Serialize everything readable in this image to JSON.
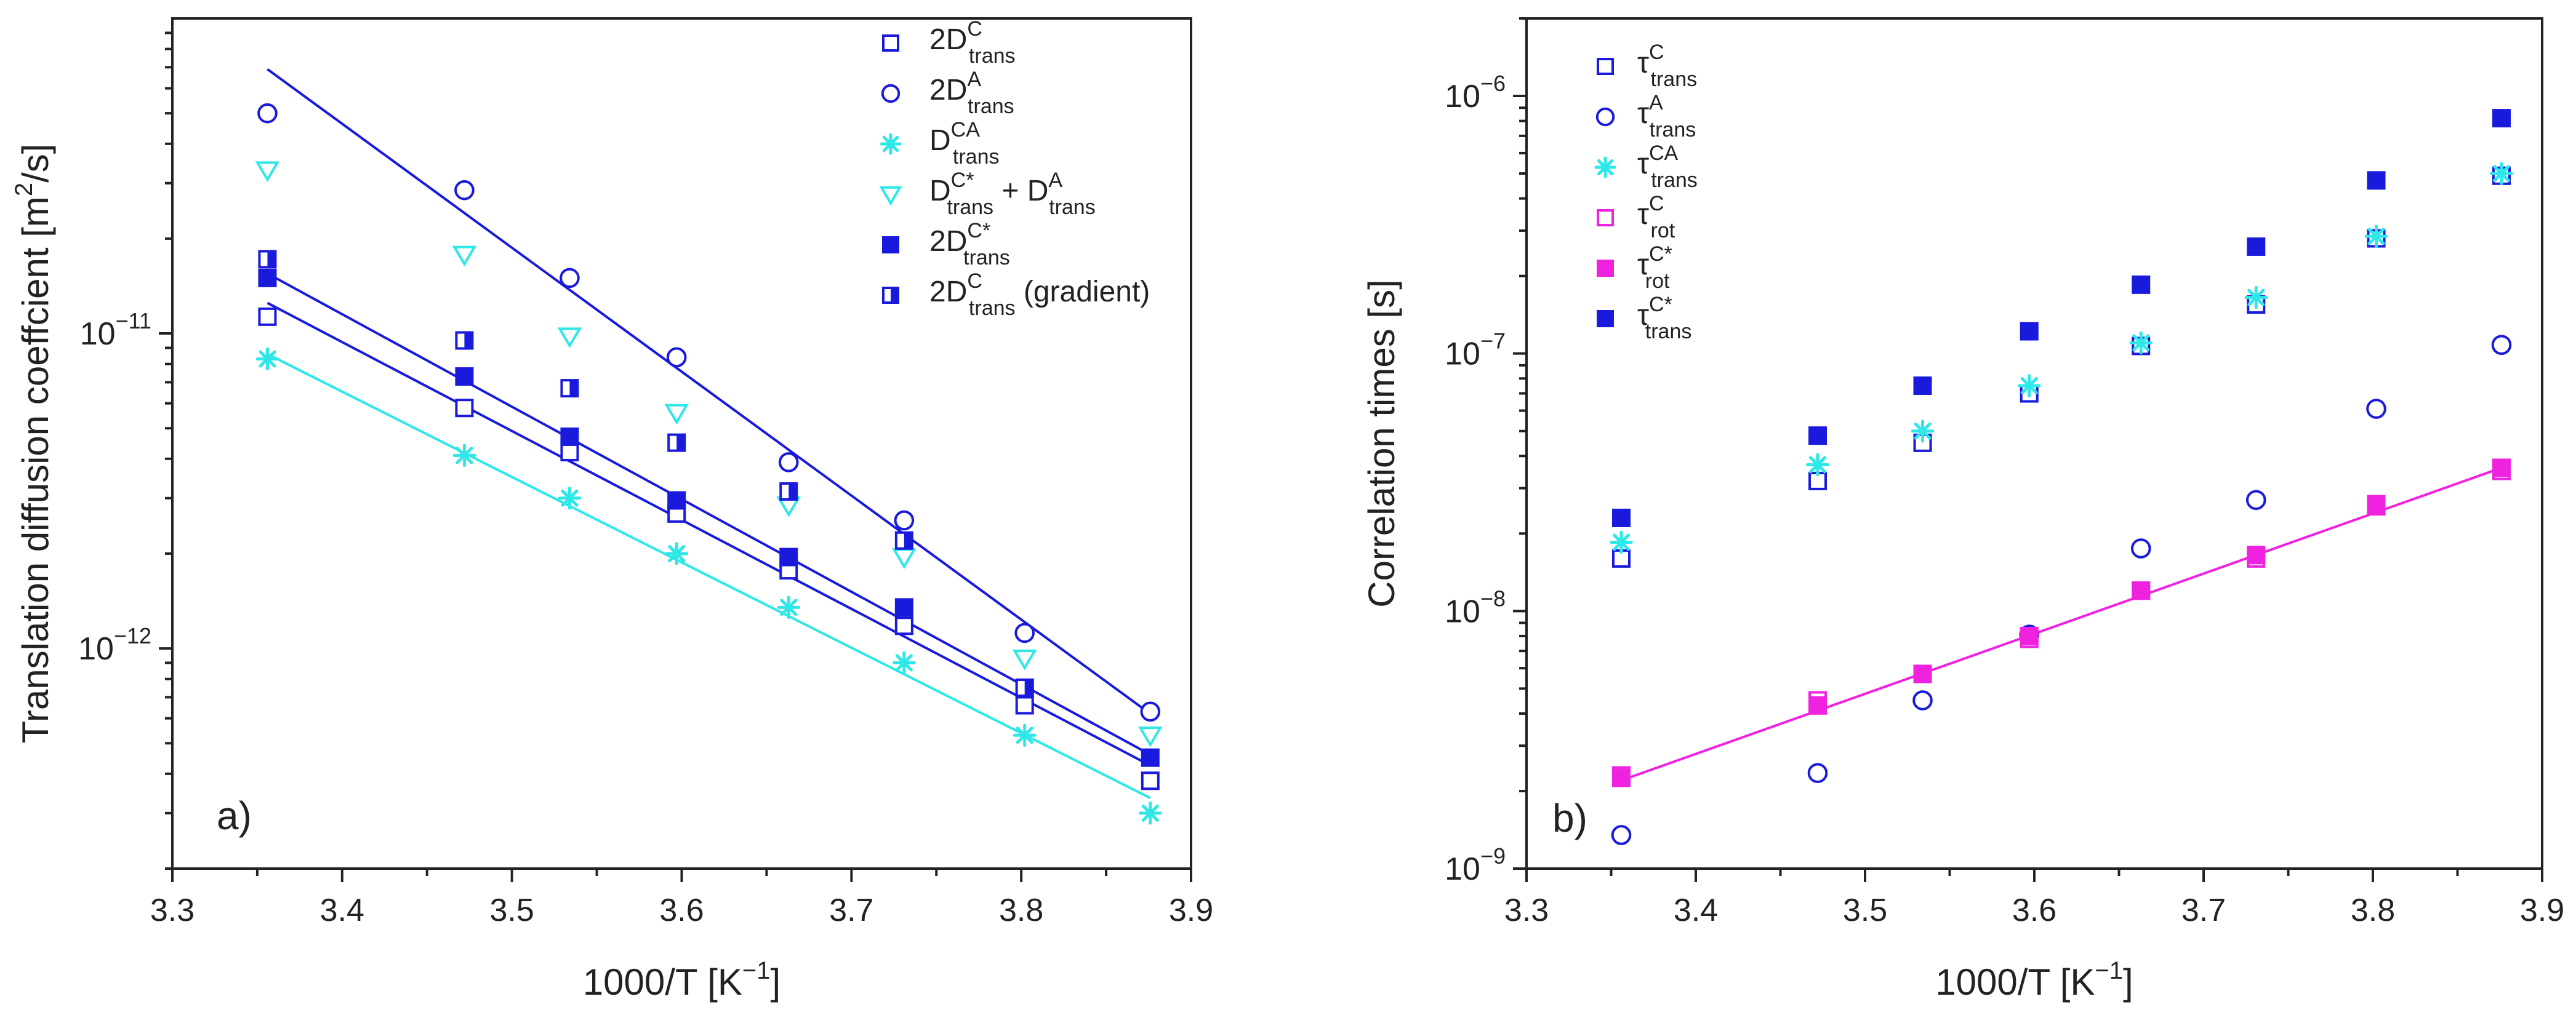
{
  "colors": {
    "blue": "#1a1adc",
    "cyan": "#2ee8e8",
    "magenta": "#ef22e0",
    "axis": "#222222"
  },
  "chart_data": [
    {
      "type": "scatter",
      "panel_label": "a)",
      "xlabel": "1000/T [K−1]",
      "ylabel": "Translation diffusion coeffcient [m2/s]",
      "xscale": "linear",
      "yscale": "log",
      "xlim": [
        3.3,
        3.9
      ],
      "ylim": [
        2e-13,
        1e-10
      ],
      "x_ticks": [
        3.3,
        3.4,
        3.5,
        3.6,
        3.7,
        3.8,
        3.9
      ],
      "x_tick_labels": [
        "3.3",
        "3.4",
        "3.5",
        "3.6",
        "3.7",
        "3.8",
        "3.9"
      ],
      "y_ticks": [
        1e-12,
        1e-11
      ],
      "y_tick_labels": [
        {
          "base": "10",
          "exp": "-12"
        },
        {
          "base": "10",
          "exp": "-11"
        }
      ],
      "legend_position": "top-right",
      "series": [
        {
          "name": "2D_trans^C",
          "label_main": "2D",
          "label_sup": "C",
          "label_sub": "trans",
          "label_suffix": "",
          "marker": "square-open",
          "color": "#1a1adc",
          "x": [
            3.356,
            3.472,
            3.534,
            3.597,
            3.663,
            3.731,
            3.802,
            3.876
          ],
          "y": [
            1.13e-11,
            5.8e-12,
            4.2e-12,
            2.68e-12,
            1.77e-12,
            1.18e-12,
            6.6e-13,
            3.8e-13
          ]
        },
        {
          "name": "2D_trans^A",
          "label_main": "2D",
          "label_sup": "A",
          "label_sub": "trans",
          "label_suffix": "",
          "marker": "circle-open",
          "color": "#1a1adc",
          "x": [
            3.356,
            3.472,
            3.534,
            3.597,
            3.663,
            3.731,
            3.802,
            3.876
          ],
          "y": [
            5e-11,
            2.85e-11,
            1.5e-11,
            8.4e-12,
            3.9e-12,
            2.55e-12,
            1.12e-12,
            6.3e-13
          ]
        },
        {
          "name": "D_trans^CA",
          "label_main": "D",
          "label_sup": "CA",
          "label_sub": "trans",
          "label_suffix": "",
          "marker": "asterisk",
          "color": "#2ee8e8",
          "x": [
            3.356,
            3.472,
            3.534,
            3.597,
            3.663,
            3.731,
            3.802,
            3.876
          ],
          "y": [
            8.3e-12,
            4.1e-12,
            3e-12,
            2e-12,
            1.35e-12,
            9e-13,
            5.3e-13,
            3e-13
          ]
        },
        {
          "name": "D_trans^C* + D_trans^A",
          "label_main": "D",
          "label_sup": "C*",
          "label_sub": "trans",
          "label_suffix": "+ D",
          "label_sup2": "A",
          "label_sub2": "trans",
          "marker": "triangle-down-open",
          "color": "#2ee8e8",
          "x": [
            3.356,
            3.472,
            3.534,
            3.597,
            3.663,
            3.731,
            3.802,
            3.876
          ],
          "y": [
            3.3e-11,
            1.78e-11,
            9.8e-12,
            5.6e-12,
            2.85e-12,
            1.95e-12,
            9.3e-13,
            5.3e-13
          ]
        },
        {
          "name": "2D_trans^C*",
          "label_main": "2D",
          "label_sup": "C*",
          "label_sub": "trans",
          "label_suffix": "",
          "marker": "square-filled",
          "color": "#1a1adc",
          "x": [
            3.356,
            3.472,
            3.534,
            3.597,
            3.663,
            3.731,
            3.802,
            3.876
          ],
          "y": [
            1.5e-11,
            7.3e-12,
            4.7e-12,
            2.95e-12,
            1.95e-12,
            1.35e-12,
            7.5e-13,
            4.5e-13
          ]
        },
        {
          "name": "2D_trans^C (gradient)",
          "label_main": "2D",
          "label_sup": "C",
          "label_sub": "trans",
          "label_suffix": "(gradient)",
          "marker": "square-half",
          "color": "#1a1adc",
          "x": [
            3.356,
            3.472,
            3.534,
            3.597,
            3.663,
            3.731,
            3.802
          ],
          "y": [
            1.72e-11,
            9.5e-12,
            6.7e-12,
            4.5e-12,
            3.15e-12,
            2.2e-12,
            7.5e-13
          ]
        }
      ],
      "fit_lines": [
        {
          "color": "#1a1adc",
          "x": [
            3.356,
            3.876
          ],
          "y": [
            6.9e-11,
            6.2e-13
          ]
        },
        {
          "color": "#1a1adc",
          "x": [
            3.356,
            3.876
          ],
          "y": [
            1.55e-11,
            4.6e-13
          ]
        },
        {
          "color": "#1a1adc",
          "x": [
            3.356,
            3.876
          ],
          "y": [
            1.25e-11,
            4.25e-13
          ]
        },
        {
          "color": "#2ee8e8",
          "x": [
            3.356,
            3.876
          ],
          "y": [
            8.6e-12,
            3.35e-13
          ]
        }
      ]
    },
    {
      "type": "scatter",
      "panel_label": "b)",
      "xlabel": "1000/T [K−1]",
      "ylabel": "Correlation times [s]",
      "xscale": "linear",
      "yscale": "log",
      "xlim": [
        3.3,
        3.9
      ],
      "ylim": [
        1e-09,
        2e-06
      ],
      "x_ticks": [
        3.3,
        3.4,
        3.5,
        3.6,
        3.7,
        3.8,
        3.9
      ],
      "x_tick_labels": [
        "3.3",
        "3.4",
        "3.5",
        "3.6",
        "3.7",
        "3.8",
        "3.9"
      ],
      "y_ticks": [
        1e-09,
        1e-08,
        1e-07,
        1e-06
      ],
      "y_tick_labels": [
        {
          "base": "10",
          "exp": "-9"
        },
        {
          "base": "10",
          "exp": "-8"
        },
        {
          "base": "10",
          "exp": "-7"
        },
        {
          "base": "10",
          "exp": "-6"
        }
      ],
      "legend_position": "top-left",
      "series": [
        {
          "name": "tau_trans^C",
          "label_main": "τ",
          "label_sup": "C",
          "label_sub": "trans",
          "label_suffix": "",
          "marker": "square-open",
          "color": "#1a1adc",
          "x": [
            3.356,
            3.472,
            3.534,
            3.597,
            3.663,
            3.731,
            3.802,
            3.876
          ],
          "y": [
            1.6e-08,
            3.2e-08,
            4.5e-08,
            7e-08,
            1.07e-07,
            1.55e-07,
            2.8e-07,
            4.9e-07
          ]
        },
        {
          "name": "tau_trans^A",
          "label_main": "τ",
          "label_sup": "A",
          "label_sub": "trans",
          "label_suffix": "",
          "marker": "circle-open",
          "color": "#1a1adc",
          "x": [
            3.356,
            3.472,
            3.534,
            3.597,
            3.663,
            3.731,
            3.802,
            3.876
          ],
          "y": [
            1.35e-09,
            2.35e-09,
            4.5e-09,
            8.1e-09,
            1.75e-08,
            2.7e-08,
            6.1e-08,
            1.08e-07
          ]
        },
        {
          "name": "tau_trans^CA",
          "label_main": "τ",
          "label_sup": "CA",
          "label_sub": "trans",
          "label_suffix": "",
          "marker": "asterisk",
          "color": "#2ee8e8",
          "x": [
            3.356,
            3.472,
            3.534,
            3.597,
            3.663,
            3.731,
            3.802,
            3.876
          ],
          "y": [
            1.85e-08,
            3.7e-08,
            5e-08,
            7.5e-08,
            1.1e-07,
            1.65e-07,
            2.85e-07,
            5e-07
          ]
        },
        {
          "name": "tau_rot^C",
          "label_main": "τ",
          "label_sup": "C",
          "label_sub": "rot",
          "label_suffix": "",
          "marker": "square-open",
          "color": "#ef22e0",
          "x": [
            3.356,
            3.472,
            3.534,
            3.597,
            3.663,
            3.731,
            3.802,
            3.876
          ],
          "y": [
            2.3e-09,
            4.5e-09,
            5.7e-09,
            7.8e-09,
            1.2e-08,
            1.6e-08,
            2.55e-08,
            3.5e-08
          ]
        },
        {
          "name": "tau_rot^C*",
          "label_main": "τ",
          "label_sup": "C*",
          "label_sub": "rot",
          "label_suffix": "",
          "marker": "square-filled",
          "color": "#ef22e0",
          "x": [
            3.356,
            3.472,
            3.534,
            3.597,
            3.663,
            3.731,
            3.802,
            3.876
          ],
          "y": [
            2.25e-09,
            4.3e-09,
            5.7e-09,
            8e-09,
            1.2e-08,
            1.65e-08,
            2.6e-08,
            3.6e-08
          ]
        },
        {
          "name": "tau_trans^C*",
          "label_main": "τ",
          "label_sup": "C*",
          "label_sub": "trans",
          "label_suffix": "",
          "marker": "square-filled",
          "color": "#1a1adc",
          "x": [
            3.356,
            3.472,
            3.534,
            3.597,
            3.663,
            3.731,
            3.802,
            3.876
          ],
          "y": [
            2.3e-08,
            4.8e-08,
            7.5e-08,
            1.22e-07,
            1.85e-07,
            2.6e-07,
            4.7e-07,
            8.2e-07
          ]
        }
      ],
      "fit_lines": [
        {
          "color": "#ef22e0",
          "x": [
            3.356,
            3.876
          ],
          "y": [
            2.2e-09,
            3.6e-08
          ]
        }
      ]
    }
  ]
}
